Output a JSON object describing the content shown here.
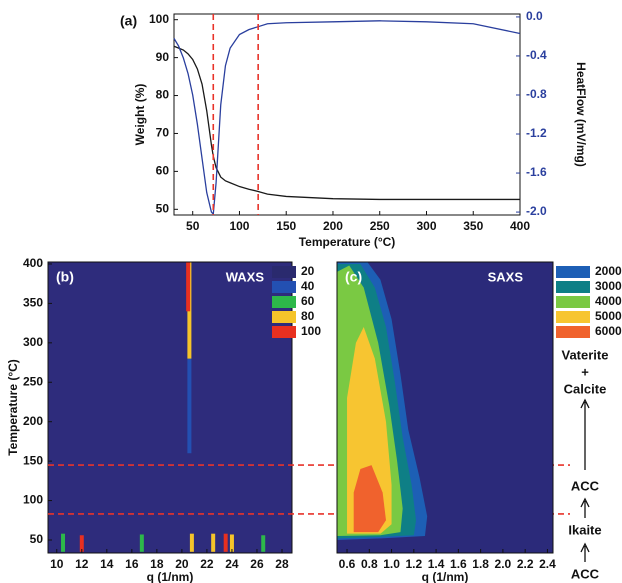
{
  "chart_data": [
    {
      "type": "line",
      "panel_label": "(a)",
      "xlabel": "Temperature (°C)",
      "ylabel": "Weight (%)",
      "y2label": "HeatFlow (mV/mg)",
      "x": [
        30,
        35,
        40,
        45,
        50,
        55,
        60,
        65,
        70,
        72,
        75,
        80,
        85,
        90,
        100,
        110,
        120,
        130,
        150,
        200,
        250,
        300,
        350,
        400
      ],
      "series": [
        {
          "color": "#1a1a1a",
          "values": [
            93,
            92.5,
            92,
            91,
            89.5,
            87,
            83,
            76,
            67,
            64,
            61,
            58.5,
            57.5,
            57,
            56,
            55.3,
            54.7,
            54,
            53.4,
            52.8,
            52.6,
            52.6,
            52.6,
            52.6
          ]
        },
        {
          "color": "#2a3f9e",
          "axis": "y2",
          "values": [
            -0.22,
            -0.3,
            -0.42,
            -0.58,
            -0.8,
            -1.1,
            -1.45,
            -1.8,
            -2.0,
            -2.02,
            -1.7,
            -0.9,
            -0.5,
            -0.32,
            -0.18,
            -0.13,
            -0.1,
            -0.07,
            -0.06,
            -0.05,
            -0.04,
            -0.05,
            -0.07,
            -0.17
          ]
        }
      ],
      "xlim": [
        30,
        400
      ],
      "xticks": [
        50,
        100,
        150,
        200,
        250,
        300,
        350,
        400
      ],
      "ylim": [
        48.5,
        101.5
      ],
      "yticks": [
        50,
        60,
        70,
        80,
        90,
        100
      ],
      "y2lim": [
        -2.03,
        0.03
      ],
      "y2ticks": [
        {
          "value": 0,
          "label": "0.0"
        },
        -0.4,
        -0.8,
        -1.2,
        -1.6,
        {
          "value": -2,
          "label": "-2.0"
        }
      ],
      "vlines": [
        72,
        120
      ],
      "vline_color": "#e8332a"
    },
    {
      "type": "contour",
      "panel_label": "(b)",
      "name": "WAXS",
      "xlabel": "q (1/nm)",
      "ylabel": "Temperature (°C)",
      "background": "#2e2c7c",
      "levels": [
        20,
        40,
        60,
        80,
        100
      ],
      "level_colors": [
        "#2a2a6e",
        "#2350b2",
        "#2db84a",
        "#f5c42a",
        "#e83020"
      ],
      "streaks": [
        {
          "q": 20.6,
          "tmin": 160,
          "tmax": 280,
          "z": 40
        },
        {
          "q": 20.6,
          "tmin": 280,
          "tmax": 403,
          "z": 80
        },
        {
          "q": 20.5,
          "tmin": 340,
          "tmax": 403,
          "z": 100
        },
        {
          "q": 10.5,
          "tmin": 35,
          "tmax": 58,
          "z": 60
        },
        {
          "q": 12,
          "tmin": 35,
          "tmax": 56,
          "z": 100
        },
        {
          "q": 16.8,
          "tmin": 35,
          "tmax": 57,
          "z": 60
        },
        {
          "q": 20.8,
          "tmin": 35,
          "tmax": 58,
          "z": 80
        },
        {
          "q": 22.5,
          "tmin": 35,
          "tmax": 58,
          "z": 80
        },
        {
          "q": 23.5,
          "tmin": 35,
          "tmax": 58,
          "z": 100
        },
        {
          "q": 24,
          "tmin": 35,
          "tmax": 57,
          "z": 80
        },
        {
          "q": 26.5,
          "tmin": 35,
          "tmax": 56,
          "z": 60
        }
      ],
      "xlim": [
        9.3,
        28.8
      ],
      "xticks": [
        10,
        12,
        14,
        16,
        18,
        20,
        22,
        24,
        26,
        28
      ],
      "ylim": [
        33.5,
        402.5
      ],
      "yticks": [
        50,
        100,
        150,
        200,
        250,
        300,
        350,
        400
      ],
      "hlines": [
        145,
        83
      ],
      "hline_color": "#e8332a"
    },
    {
      "type": "contour",
      "panel_label": "(c)",
      "name": "SAXS",
      "xlabel": "q (1/nm)",
      "background": "#2b2a7a",
      "levels": [
        2000,
        3000,
        4000,
        5000,
        6000
      ],
      "level_colors": [
        "#1d5fb5",
        "#0e7f86",
        "#7ac943",
        "#f7c531",
        "#f0622d"
      ],
      "contours": [
        {
          "z": 2000,
          "points": [
            [
              0.51,
              50
            ],
            [
              0.51,
              403
            ],
            [
              0.78,
              403
            ],
            [
              0.9,
              380
            ],
            [
              1.0,
              330
            ],
            [
              1.08,
              260
            ],
            [
              1.15,
              190
            ],
            [
              1.25,
              130
            ],
            [
              1.32,
              80
            ],
            [
              1.3,
              55
            ],
            [
              0.9,
              52
            ]
          ]
        },
        {
          "z": 3000,
          "points": [
            [
              0.51,
              52
            ],
            [
              0.51,
              400
            ],
            [
              0.72,
              400
            ],
            [
              0.85,
              370
            ],
            [
              0.95,
              320
            ],
            [
              1.03,
              250
            ],
            [
              1.1,
              180
            ],
            [
              1.18,
              120
            ],
            [
              1.22,
              75
            ],
            [
              1.2,
              56
            ],
            [
              0.9,
              54
            ]
          ]
        },
        {
          "z": 4000,
          "points": [
            [
              0.51,
              55
            ],
            [
              0.51,
              390
            ],
            [
              0.62,
              398
            ],
            [
              0.75,
              370
            ],
            [
              0.88,
              300
            ],
            [
              0.98,
              220
            ],
            [
              1.05,
              150
            ],
            [
              1.1,
              90
            ],
            [
              1.08,
              60
            ],
            [
              0.9,
              56
            ]
          ]
        },
        {
          "z": 5000,
          "points": [
            [
              0.6,
              58
            ],
            [
              0.6,
              230
            ],
            [
              0.68,
              300
            ],
            [
              0.75,
              320
            ],
            [
              0.85,
              280
            ],
            [
              0.95,
              200
            ],
            [
              1.0,
              120
            ],
            [
              1.0,
              70
            ],
            [
              0.9,
              58
            ]
          ]
        },
        {
          "z": 6000,
          "points": [
            [
              0.66,
              60
            ],
            [
              0.66,
              110
            ],
            [
              0.72,
              140
            ],
            [
              0.82,
              145
            ],
            [
              0.92,
              110
            ],
            [
              0.95,
              75
            ],
            [
              0.88,
              60
            ]
          ]
        }
      ],
      "xlim": [
        0.51,
        2.45
      ],
      "xticks": [
        0.6,
        0.8,
        {
          "value": 1,
          "label": "1.0"
        },
        1.2,
        1.4,
        1.6,
        1.8,
        {
          "value": 2,
          "label": "2.0"
        },
        2.2,
        2.4
      ],
      "ylim": [
        33.5,
        402.5
      ],
      "phases": [
        "Vaterite",
        "+",
        "Calcite",
        "ACC",
        "Ikaite",
        "ACC"
      ]
    }
  ]
}
